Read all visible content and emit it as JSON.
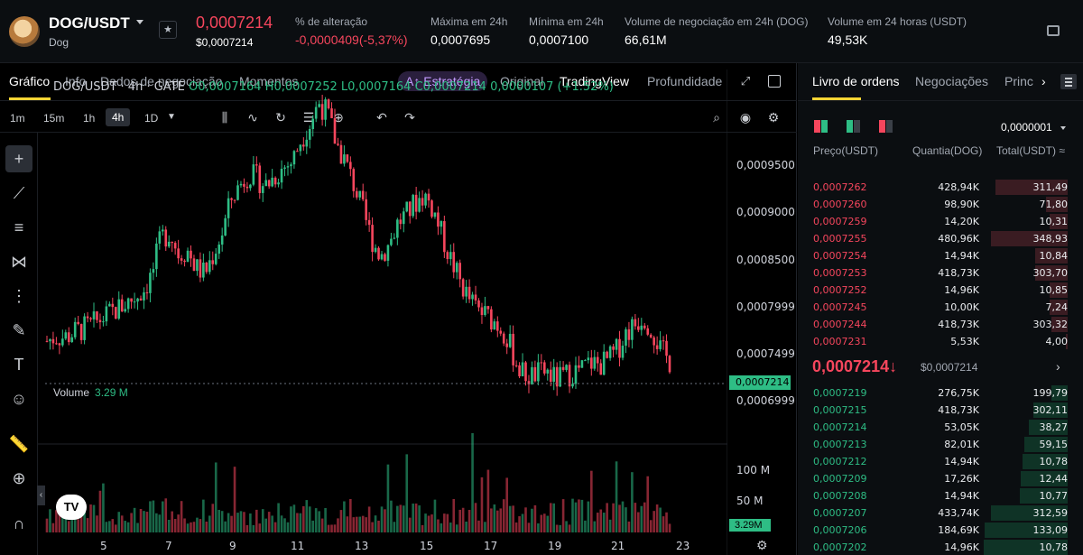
{
  "header": {
    "pair": "DOG/USDT",
    "pair_sub": "Dog",
    "star": "★",
    "last_price": "0,0007214",
    "last_price_usd": "$0,0007214",
    "stats": [
      {
        "label": "% de alteração",
        "value": "-0,0000409(-5,37%)",
        "red": true
      },
      {
        "label": "Máxima em 24h",
        "value": "0,0007695"
      },
      {
        "label": "Mínima em 24h",
        "value": "0,0007100"
      },
      {
        "label": "Volume de negociação em 24h (DOG)",
        "value": "66,61M"
      },
      {
        "label": "Volume em 24 horas (USDT)",
        "value": "49,53K"
      }
    ]
  },
  "chart_tabs": {
    "grafico": "Gráfico",
    "info": "Info",
    "dados": "Dados de negociação",
    "momentos": "Momentos",
    "estrategia": "A↑ Estratégia",
    "original": "Original",
    "tradingview": "TradingView",
    "profundidade": "Profundidade"
  },
  "timeframes": [
    "1m",
    "15m",
    "1h",
    "4h",
    "1D"
  ],
  "active_timeframe": "4h",
  "ohlc": {
    "symbol": "DOG/USDT · 4h · GATE",
    "o": "O0,0007164",
    "h": "H0,0007252",
    "l": "L0,0007164",
    "c": "C0,0007214",
    "chg": "0,0000107 (+1.52%)"
  },
  "volume_label": "Volume",
  "volume_value": "3.29 M",
  "price_axis": [
    "0,0009500",
    "0,0009000",
    "0,0008500",
    "0,0007999",
    "0,0007499",
    "0,0006999"
  ],
  "current_price_tag": "0,0007214",
  "volume_axis": [
    "100 M",
    "50 M"
  ],
  "volume_tag": "3.29M",
  "date_axis": [
    "5",
    "7",
    "9",
    "11",
    "13",
    "15",
    "17",
    "19",
    "21",
    "23"
  ],
  "tv_logo": "TV",
  "colors": {
    "up": "#2ebd85",
    "down": "#f6465d",
    "accent": "#fcd535",
    "bg": "#000000"
  },
  "chart_data": {
    "type": "candlestick",
    "title": "DOG/USDT · 4h · GATE",
    "x_ticks": [
      "5",
      "7",
      "9",
      "11",
      "13",
      "15",
      "17",
      "19",
      "21",
      "23"
    ],
    "ylim": [
      0.00067,
      0.00096
    ],
    "series": [
      {
        "close_path": [
          0.000738,
          0.000742,
          0.000741,
          0.000745,
          0.000748,
          0.000751,
          0.000756,
          0.00076,
          0.000765,
          0.00077,
          0.000775,
          0.000781,
          0.000795,
          0.000825,
          0.00083,
          0.000812,
          0.000815,
          0.0008,
          0.000795,
          0.000812,
          0.00083,
          0.000858,
          0.00087,
          0.00088,
          0.000875,
          0.00087,
          0.000878,
          0.000885,
          0.00089,
          0.00091,
          0.000922,
          0.00094,
          0.00093,
          0.000905,
          0.00089,
          0.00087,
          0.000848,
          0.000825,
          0.00081,
          0.00082,
          0.000838,
          0.000845,
          0.000855,
          0.000862,
          0.00085,
          0.000828,
          0.000808,
          0.00079,
          0.000775,
          0.000765,
          0.00076,
          0.000755,
          0.000748,
          0.00073,
          0.000712,
          0.000708,
          0.00071,
          0.000712,
          0.000705,
          0.000708,
          0.000712,
          0.000714,
          0.00072,
          0.000718,
          0.000722,
          0.00073,
          0.000745,
          0.000752,
          0.00076,
          0.000748,
          0.00073,
          0.000721
        ]
      }
    ],
    "volume_axis_max": 110
  },
  "book": {
    "tabs": [
      "Livro de ordens",
      "Negociações",
      "Princ"
    ],
    "precision": "0,0000001",
    "head_price": "Preço(USDT)",
    "head_qty": "Quantia(DOG)",
    "head_total": "Total(USDT) ≈",
    "asks": [
      {
        "p": "0,0007262",
        "q": "428,94K",
        "t": "311,49",
        "depth": 0.8
      },
      {
        "p": "0,0007260",
        "q": "98,90K",
        "t": "71,80",
        "depth": 0.24
      },
      {
        "p": "0,0007259",
        "q": "14,20K",
        "t": "10,31",
        "depth": 0.2
      },
      {
        "p": "0,0007255",
        "q": "480,96K",
        "t": "348,93",
        "depth": 0.85
      },
      {
        "p": "0,0007254",
        "q": "14,94K",
        "t": "10,84",
        "depth": 0.36
      },
      {
        "p": "0,0007253",
        "q": "418,73K",
        "t": "303,70",
        "depth": 0.36
      },
      {
        "p": "0,0007252",
        "q": "14,96K",
        "t": "10,85",
        "depth": 0.2
      },
      {
        "p": "0,0007245",
        "q": "10,00K",
        "t": "7,24",
        "depth": 0.2
      },
      {
        "p": "0,0007244",
        "q": "418,73K",
        "t": "303,32",
        "depth": 0.18
      },
      {
        "p": "0,0007231",
        "q": "5,53K",
        "t": "4,00",
        "depth": 0.02
      }
    ],
    "mid_price": "0,0007214",
    "mid_arrow": "↓",
    "mid_usd": "$0,0007214",
    "bids": [
      {
        "p": "0,0007219",
        "q": "276,75K",
        "t": "199,79",
        "depth": 0.18
      },
      {
        "p": "0,0007215",
        "q": "418,73K",
        "t": "302,11",
        "depth": 0.38
      },
      {
        "p": "0,0007214",
        "q": "53,05K",
        "t": "38,27",
        "depth": 0.43
      },
      {
        "p": "0,0007213",
        "q": "82,01K",
        "t": "59,15",
        "depth": 0.48
      },
      {
        "p": "0,0007212",
        "q": "14,94K",
        "t": "10,78",
        "depth": 0.5
      },
      {
        "p": "0,0007209",
        "q": "17,26K",
        "t": "12,44",
        "depth": 0.52
      },
      {
        "p": "0,0007208",
        "q": "14,94K",
        "t": "10,77",
        "depth": 0.53
      },
      {
        "p": "0,0007207",
        "q": "433,74K",
        "t": "312,59",
        "depth": 0.85
      },
      {
        "p": "0,0007206",
        "q": "184,69K",
        "t": "133,09",
        "depth": 0.92
      },
      {
        "p": "0,0007202",
        "q": "14,96K",
        "t": "10,78",
        "depth": 0.93
      }
    ]
  }
}
